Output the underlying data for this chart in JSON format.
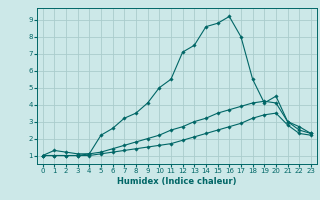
{
  "xlabel": "Humidex (Indice chaleur)",
  "ylabel": "",
  "bg_color": "#cce8e8",
  "grid_color": "#aacccc",
  "line_color": "#006666",
  "xlim": [
    -0.5,
    23.5
  ],
  "ylim": [
    0.5,
    9.7
  ],
  "xticks": [
    0,
    1,
    2,
    3,
    4,
    5,
    6,
    7,
    8,
    9,
    10,
    11,
    12,
    13,
    14,
    15,
    16,
    17,
    18,
    19,
    20,
    21,
    22,
    23
  ],
  "yticks": [
    1,
    2,
    3,
    4,
    5,
    6,
    7,
    8,
    9
  ],
  "line1_x": [
    0,
    1,
    2,
    3,
    4,
    5,
    6,
    7,
    8,
    9,
    10,
    11,
    12,
    13,
    14,
    15,
    16,
    17,
    18,
    19,
    20,
    21,
    22,
    23
  ],
  "line1_y": [
    1.0,
    1.3,
    1.2,
    1.1,
    1.1,
    2.2,
    2.6,
    3.2,
    3.5,
    4.1,
    5.0,
    5.5,
    7.1,
    7.5,
    8.6,
    8.8,
    9.2,
    8.0,
    5.5,
    4.1,
    4.5,
    3.0,
    2.7,
    2.3
  ],
  "line2_x": [
    0,
    1,
    2,
    3,
    4,
    5,
    6,
    7,
    8,
    9,
    10,
    11,
    12,
    13,
    14,
    15,
    16,
    17,
    18,
    19,
    20,
    21,
    22,
    23
  ],
  "line2_y": [
    1.0,
    1.0,
    1.0,
    1.0,
    1.1,
    1.2,
    1.4,
    1.6,
    1.8,
    2.0,
    2.2,
    2.5,
    2.7,
    3.0,
    3.2,
    3.5,
    3.7,
    3.9,
    4.1,
    4.2,
    4.1,
    3.0,
    2.5,
    2.3
  ],
  "line3_x": [
    0,
    1,
    2,
    3,
    4,
    5,
    6,
    7,
    8,
    9,
    10,
    11,
    12,
    13,
    14,
    15,
    16,
    17,
    18,
    19,
    20,
    21,
    22,
    23
  ],
  "line3_y": [
    1.0,
    1.0,
    1.0,
    1.0,
    1.0,
    1.1,
    1.2,
    1.3,
    1.4,
    1.5,
    1.6,
    1.7,
    1.9,
    2.1,
    2.3,
    2.5,
    2.7,
    2.9,
    3.2,
    3.4,
    3.5,
    2.8,
    2.3,
    2.2
  ],
  "tick_fontsize": 5,
  "xlabel_fontsize": 6,
  "marker_size": 1.8,
  "line_width": 0.8
}
